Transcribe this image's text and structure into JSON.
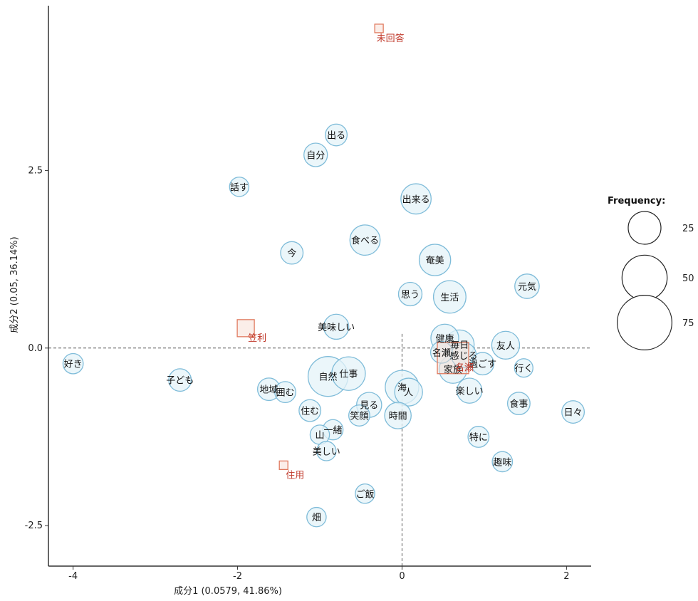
{
  "chart_data": {
    "type": "scatter",
    "title": "",
    "xlabel": "成分1 (0.0579, 41.86%)",
    "ylabel": "成分2 (0.05, 36.14%)",
    "xlim": [
      -4.3,
      2.3
    ],
    "ylim": [
      -3.07,
      4.82
    ],
    "x_ticks": [
      -4,
      -2,
      0,
      2
    ],
    "x_tick_labels": [
      "-4",
      "-2",
      "0",
      "2"
    ],
    "y_ticks": [
      -2.5,
      0.0,
      2.5
    ],
    "y_tick_labels": [
      "-2.5",
      "0.0",
      "2.5"
    ],
    "reference_lines": {
      "x": 0,
      "y": 0
    },
    "colors": {
      "bubble_fill": "#e4f3f8",
      "bubble_stroke": "#7fbcd9",
      "category_stroke": "#e07a5f",
      "category_text": "#c0392b",
      "overlap_fill": "#cfcfcf"
    },
    "words": [
      {
        "label": "出る",
        "x": -0.8,
        "y": 3.0,
        "freq": 20
      },
      {
        "label": "自分",
        "x": -1.05,
        "y": 2.72,
        "freq": 25
      },
      {
        "label": "話す",
        "x": -1.98,
        "y": 2.27,
        "freq": 14
      },
      {
        "label": "出来る",
        "x": 0.17,
        "y": 2.1,
        "freq": 50
      },
      {
        "label": "食べる",
        "x": -0.45,
        "y": 1.52,
        "freq": 50
      },
      {
        "label": "今",
        "x": -1.34,
        "y": 1.34,
        "freq": 22
      },
      {
        "label": "奄美",
        "x": 0.4,
        "y": 1.24,
        "freq": 55
      },
      {
        "label": "思う",
        "x": 0.1,
        "y": 0.76,
        "freq": 25
      },
      {
        "label": "生活",
        "x": 0.58,
        "y": 0.72,
        "freq": 60
      },
      {
        "label": "元気",
        "x": 1.52,
        "y": 0.87,
        "freq": 28
      },
      {
        "label": "美味しい",
        "x": -0.8,
        "y": 0.3,
        "freq": 30
      },
      {
        "label": "健康",
        "x": 0.52,
        "y": 0.14,
        "freq": 40
      },
      {
        "label": "毎日",
        "x": 0.7,
        "y": 0.05,
        "freq": 45
      },
      {
        "label": "友人",
        "x": 1.26,
        "y": 0.04,
        "freq": 40
      },
      {
        "label": "名瀬",
        "x": 0.48,
        "y": -0.06,
        "freq": 20
      },
      {
        "label": "感じる",
        "x": 0.75,
        "y": -0.1,
        "freq": 30
      },
      {
        "label": "過ごす",
        "x": 0.98,
        "y": -0.22,
        "freq": 22
      },
      {
        "label": "行く",
        "x": 1.48,
        "y": -0.28,
        "freq": 12
      },
      {
        "label": "好き",
        "x": -4.0,
        "y": -0.22,
        "freq": 16
      },
      {
        "label": "家族",
        "x": 0.62,
        "y": -0.3,
        "freq": 40
      },
      {
        "label": "仕事",
        "x": -0.65,
        "y": -0.36,
        "freq": 65
      },
      {
        "label": "自然",
        "x": -0.9,
        "y": -0.4,
        "freq": 100
      },
      {
        "label": "子ども",
        "x": -2.7,
        "y": -0.45,
        "freq": 22
      },
      {
        "label": "地域",
        "x": -1.62,
        "y": -0.58,
        "freq": 22
      },
      {
        "label": "囲む",
        "x": -1.42,
        "y": -0.62,
        "freq": 18
      },
      {
        "label": "海",
        "x": -0.0,
        "y": -0.55,
        "freq": 65
      },
      {
        "label": "人",
        "x": 0.08,
        "y": -0.62,
        "freq": 40
      },
      {
        "label": "楽しい",
        "x": 0.82,
        "y": -0.6,
        "freq": 30
      },
      {
        "label": "見る",
        "x": -0.4,
        "y": -0.8,
        "freq": 30
      },
      {
        "label": "住む",
        "x": -1.12,
        "y": -0.88,
        "freq": 20
      },
      {
        "label": "食事",
        "x": 1.42,
        "y": -0.78,
        "freq": 22
      },
      {
        "label": "日々",
        "x": 2.08,
        "y": -0.9,
        "freq": 22
      },
      {
        "label": "笑顔",
        "x": -0.52,
        "y": -0.95,
        "freq": 18
      },
      {
        "label": "時間",
        "x": -0.05,
        "y": -0.95,
        "freq": 35
      },
      {
        "label": "特に",
        "x": 0.93,
        "y": -1.25,
        "freq": 18
      },
      {
        "label": "一緒",
        "x": -0.84,
        "y": -1.15,
        "freq": 16
      },
      {
        "label": "山",
        "x": -1.0,
        "y": -1.22,
        "freq": 14
      },
      {
        "label": "美しい",
        "x": -0.92,
        "y": -1.45,
        "freq": 14
      },
      {
        "label": "趣味",
        "x": 1.22,
        "y": -1.6,
        "freq": 16
      },
      {
        "label": "ご飯",
        "x": -0.45,
        "y": -2.05,
        "freq": 14
      },
      {
        "label": "畑",
        "x": -1.04,
        "y": -2.38,
        "freq": 14
      }
    ],
    "categories": [
      {
        "label": "未回答",
        "x": -0.28,
        "y": 4.5,
        "size": 1
      },
      {
        "label": "笠利",
        "x": -1.9,
        "y": 0.28,
        "size": 4
      },
      {
        "label": "名瀬",
        "x": 0.62,
        "y": -0.14,
        "size": 9
      },
      {
        "label": "住用",
        "x": -1.44,
        "y": -1.65,
        "size": 1
      }
    ],
    "legend": {
      "title": "Frequency:",
      "position": "right",
      "items": [
        {
          "label": "25",
          "value": 25
        },
        {
          "label": "50",
          "value": 50
        },
        {
          "label": "75",
          "value": 75
        }
      ]
    }
  }
}
